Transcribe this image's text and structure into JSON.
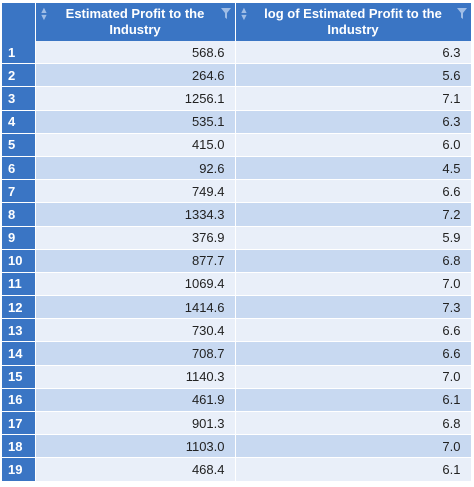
{
  "table": {
    "columns": [
      {
        "label": "Estimated Profit to the Industry"
      },
      {
        "label": "log of Estimated Profit to the Industry"
      }
    ],
    "rows": [
      {
        "index": "1",
        "profit": "568.6",
        "log": "6.3"
      },
      {
        "index": "2",
        "profit": "264.6",
        "log": "5.6"
      },
      {
        "index": "3",
        "profit": "1256.1",
        "log": "7.1"
      },
      {
        "index": "4",
        "profit": "535.1",
        "log": "6.3"
      },
      {
        "index": "5",
        "profit": "415.0",
        "log": "6.0"
      },
      {
        "index": "6",
        "profit": "92.6",
        "log": "4.5"
      },
      {
        "index": "7",
        "profit": "749.4",
        "log": "6.6"
      },
      {
        "index": "8",
        "profit": "1334.3",
        "log": "7.2"
      },
      {
        "index": "9",
        "profit": "376.9",
        "log": "5.9"
      },
      {
        "index": "10",
        "profit": "877.7",
        "log": "6.8"
      },
      {
        "index": "11",
        "profit": "1069.4",
        "log": "7.0"
      },
      {
        "index": "12",
        "profit": "1414.6",
        "log": "7.3"
      },
      {
        "index": "13",
        "profit": "730.4",
        "log": "6.6"
      },
      {
        "index": "14",
        "profit": "708.7",
        "log": "6.6"
      },
      {
        "index": "15",
        "profit": "1140.3",
        "log": "7.0"
      },
      {
        "index": "16",
        "profit": "461.9",
        "log": "6.1"
      },
      {
        "index": "17",
        "profit": "901.3",
        "log": "6.8"
      },
      {
        "index": "18",
        "profit": "1103.0",
        "log": "7.0"
      },
      {
        "index": "19",
        "profit": "468.4",
        "log": "6.1"
      }
    ]
  },
  "icons": {
    "sort": "sort-icon",
    "filter": "filter-icon"
  },
  "colors": {
    "header_bg": "#3a75c4",
    "row_light": "#e9eff9",
    "row_dark": "#c8d9f1"
  }
}
